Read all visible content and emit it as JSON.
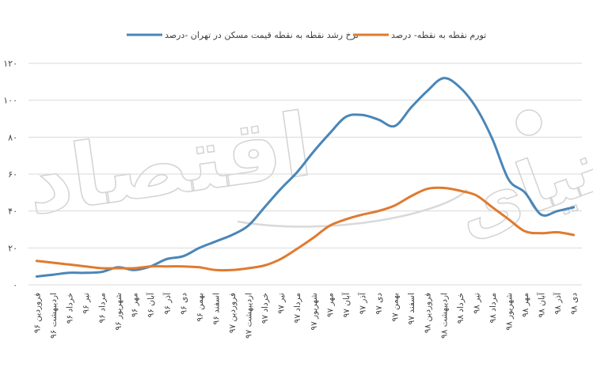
{
  "chart_data": {
    "type": "line",
    "title": "",
    "xlabel": "",
    "ylabel": "",
    "ylim": [
      0,
      120
    ],
    "yticks": [
      0,
      20,
      40,
      60,
      80,
      100,
      120
    ],
    "ytick_labels": [
      "۰",
      "۲۰",
      "۴۰",
      "۶۰",
      "۸۰",
      "۱۰۰",
      "۱۲۰"
    ],
    "grid": "horizontal",
    "legend_position": "top",
    "categories": [
      "فروردین ۹۶",
      "اردیبهشت ۹۶",
      "خرداد ۹۶",
      "تیر ۹۶",
      "مرداد ۹۶",
      "شهریور ۹۶",
      "مهر ۹۶",
      "آبان ۹۶",
      "آذر ۹۶",
      "دی ۹۶",
      "بهمن ۹۶",
      "اسفند ۹۶",
      "فروردین ۹۷",
      "اردیبهشت ۹۷",
      "خرداد ۹۷",
      "تیر ۹۷",
      "مرداد ۹۷",
      "شهریور ۹۷",
      "مهر ۹۷",
      "آبان ۹۷",
      "آذر ۹۷",
      "دی ۹۷",
      "بهمن ۹۷",
      "اسفند ۹۷",
      "فروردین ۹۸",
      "اردیبهشت ۹۸",
      "خرداد ۹۸",
      "تیر ۹۸",
      "مرداد ۹۸",
      "شهریور ۹۸",
      "مهر ۹۸",
      "آبان ۹۸",
      "آذر ۹۸",
      "دی ۹۸"
    ],
    "series": [
      {
        "name": "نرخ رشد نقطه به نقطه قیمت مسکن در تهران -درصد",
        "color": "#4a86b8",
        "values": [
          4.5,
          5.5,
          6.5,
          6.5,
          7,
          9.5,
          8,
          10,
          14,
          15.5,
          20,
          23.5,
          27,
          32,
          42,
          52,
          61,
          72,
          82,
          91,
          92,
          89.5,
          86,
          96,
          105,
          112,
          107,
          96,
          79,
          57,
          50,
          38,
          40,
          42
        ]
      },
      {
        "name": "تورم نقطه به نقطه- درصد",
        "color": "#e07a2f",
        "values": [
          13,
          12,
          11,
          10,
          9,
          9,
          9,
          10,
          10,
          10,
          9.5,
          8,
          8,
          9,
          10.5,
          14,
          19.5,
          25.5,
          32,
          35.5,
          38,
          40,
          43,
          48,
          52,
          52.5,
          51,
          48.5,
          42,
          35.5,
          29,
          28,
          28.5,
          27
        ]
      }
    ]
  }
}
